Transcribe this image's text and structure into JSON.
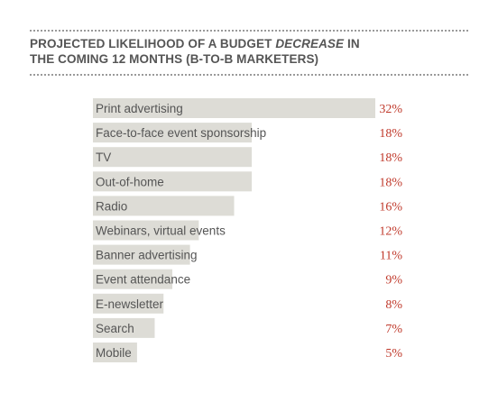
{
  "header": {
    "title_line1_before": "PROJECTED LIKELIHOOD OF A BUDGET ",
    "title_line1_emph": "DECREASE",
    "title_line1_after": " IN",
    "title_line2": "THE COMING 12 MONTHS (B-TO-B MARKETERS)"
  },
  "colors": {
    "bar": "#dddcd6",
    "value_text": "#c0392b",
    "label_text": "#555555",
    "title_text": "#555555"
  },
  "chart_data": {
    "type": "bar",
    "orientation": "horizontal",
    "title": "PROJECTED LIKELIHOOD OF A BUDGET DECREASE IN THE COMING 12 MONTHS (B-TO-B MARKETERS)",
    "categories": [
      "Print advertising",
      "Face-to-face event sponsorship",
      "TV",
      "Out-of-home",
      "Radio",
      "Webinars, virtual events",
      "Banner advertising",
      "Event attendance",
      "E-newsletter",
      "Search",
      "Mobile"
    ],
    "values": [
      32,
      18,
      18,
      18,
      16,
      12,
      11,
      9,
      8,
      7,
      5
    ],
    "value_labels": [
      "32%",
      "18%",
      "18%",
      "18%",
      "16%",
      "12%",
      "11%",
      "9%",
      "8%",
      "7%",
      "5%"
    ],
    "unit": "%",
    "xlim": [
      0,
      32
    ],
    "grid": false,
    "legend": "none"
  }
}
